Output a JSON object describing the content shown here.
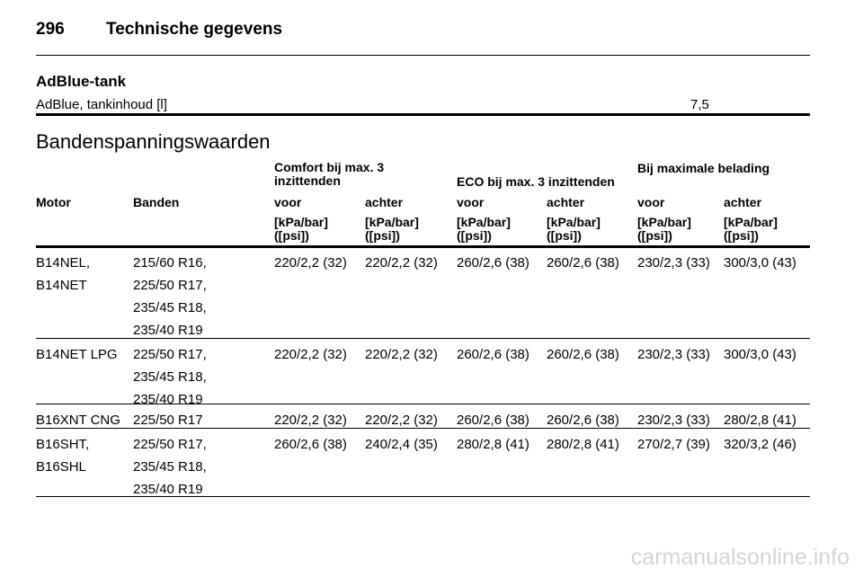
{
  "header": {
    "page_number": "296",
    "title": "Technische gegevens"
  },
  "adblue": {
    "heading": "AdBlue-tank",
    "label": "AdBlue, tankinhoud [l]",
    "value": "7,5"
  },
  "tire_pressure": {
    "heading": "Bandenspanningswaarden",
    "group_headers": {
      "comfort": "Comfort bij max. 3 inzittenden",
      "eco": "ECO bij max. 3 inzittenden",
      "max_load": "Bij maximale belading"
    },
    "col_motor": "Motor",
    "col_tires": "Banden",
    "col_front": "voor",
    "col_rear": "achter",
    "unit_line1": "[kPa/bar]",
    "unit_line2": "([psi])",
    "rows": [
      {
        "motor": [
          "B14NEL,",
          "B14NET"
        ],
        "tires": [
          "215/60 R16,",
          "225/50 R17,",
          "235/45 R18,",
          "235/40 R19"
        ],
        "values": [
          "220/2,2 (32)",
          "220/2,2 (32)",
          "260/2,6 (38)",
          "260/2,6 (38)",
          "230/2,3 (33)",
          "300/3,0 (43)"
        ]
      },
      {
        "motor": [
          "B14NET LPG"
        ],
        "tires": [
          "225/50 R17,",
          "235/45 R18,",
          "235/40 R19"
        ],
        "values": [
          "220/2,2 (32)",
          "220/2,2 (32)",
          "260/2,6 (38)",
          "260/2,6 (38)",
          "230/2,3 (33)",
          "300/3,0 (43)"
        ]
      },
      {
        "motor": [
          "B16XNT CNG"
        ],
        "tires": [
          "225/50 R17"
        ],
        "values": [
          "220/2,2 (32)",
          "220/2,2 (32)",
          "260/2,6 (38)",
          "260/2,6 (38)",
          "230/2,3 (33)",
          "280/2,8 (41)"
        ]
      },
      {
        "motor": [
          "B16SHT,",
          "B16SHL"
        ],
        "tires": [
          "225/50 R17,",
          "235/45 R18,",
          "235/40 R19"
        ],
        "values": [
          "260/2,6 (38)",
          "240/2,4 (35)",
          "280/2,8 (41)",
          "280/2,8 (41)",
          "270/2,7 (39)",
          "320/3,2 (46)"
        ]
      }
    ]
  },
  "watermark": "carmanualsonline.info"
}
